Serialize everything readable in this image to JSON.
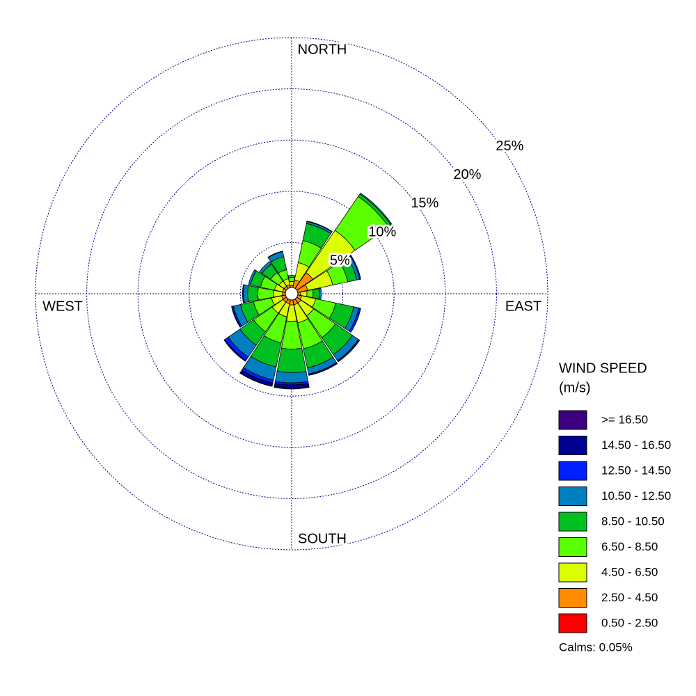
{
  "chart_data": {
    "type": "windrose",
    "compass_labels": [
      "NORTH",
      "EAST",
      "SOUTH",
      "WEST"
    ],
    "x": [
      0,
      22.5,
      45,
      67.5,
      90,
      112.5,
      135,
      157.5,
      180,
      202.5,
      225,
      247.5,
      270,
      292.5,
      315,
      337.5
    ],
    "rlim": [
      0,
      25
    ],
    "rticks": [
      {
        "value": 5,
        "label": "5%"
      },
      {
        "value": 10,
        "label": "10%"
      },
      {
        "value": 15,
        "label": "15%"
      },
      {
        "value": 20,
        "label": "20%"
      },
      {
        "value": 25,
        "label": "25%"
      }
    ],
    "legend_title": "WIND SPEED",
    "legend_unit": "(m/s)",
    "calms_text": "Calms: 0.05%",
    "series": [
      {
        "name": "0.50 - 2.50",
        "color": "#ff0000",
        "values": [
          0.3,
          0.4,
          0.5,
          0.4,
          0.3,
          0.3,
          0.3,
          0.3,
          0.3,
          0.3,
          0.3,
          0.3,
          0.3,
          0.3,
          0.3,
          0.3
        ]
      },
      {
        "name": "2.50 - 4.50",
        "color": "#ff8c00",
        "values": [
          0.5,
          1.0,
          2.0,
          1.2,
          0.6,
          0.7,
          0.8,
          0.8,
          0.8,
          0.7,
          0.7,
          0.7,
          0.6,
          0.6,
          0.6,
          0.6
        ]
      },
      {
        "name": "4.50 - 6.50",
        "color": "#dcff00",
        "values": [
          0.4,
          1.7,
          5.0,
          2.5,
          0.6,
          1.4,
          1.5,
          1.8,
          1.6,
          1.3,
          1.3,
          1.0,
          0.9,
          0.8,
          0.6,
          0.6
        ]
      },
      {
        "name": "6.50 - 8.50",
        "color": "#5aff00",
        "values": [
          0.4,
          2.2,
          4.0,
          1.5,
          0.6,
          2.0,
          2.6,
          2.6,
          2.7,
          2.6,
          2.2,
          1.8,
          1.5,
          1.4,
          1.0,
          0.9
        ]
      },
      {
        "name": "8.50 - 10.50",
        "color": "#00c020",
        "values": [
          0.2,
          1.7,
          0.3,
          0.9,
          0.6,
          1.8,
          2.0,
          1.9,
          2.3,
          2.4,
          1.6,
          1.3,
          1.0,
          1.0,
          1.0,
          1.3
        ]
      },
      {
        "name": "10.50 - 12.50",
        "color": "#0080c0",
        "values": [
          0,
          0.2,
          0.1,
          0.3,
          0.2,
          0.5,
          0.7,
          0.6,
          1.0,
          1.3,
          1.4,
          0.7,
          0.4,
          0.2,
          0.3,
          0.5
        ]
      },
      {
        "name": "12.50 - 14.50",
        "color": "#0020ff",
        "values": [
          0,
          0.05,
          0,
          0.1,
          0,
          0.2,
          0.1,
          0.1,
          0.2,
          0.3,
          0.4,
          0.15,
          0.1,
          0,
          0,
          0.05
        ]
      },
      {
        "name": "14.50 - 16.50",
        "color": "#000090",
        "values": [
          0,
          0,
          0,
          0,
          0,
          0,
          0.05,
          0.05,
          0.3,
          0.3,
          0.1,
          0.05,
          0,
          0,
          0,
          0
        ]
      },
      {
        "name": ">= 16.50",
        "color": "#3c0080",
        "values": [
          0,
          0,
          0,
          0,
          0,
          0,
          0,
          0,
          0.1,
          0.05,
          0,
          0,
          0,
          0,
          0,
          0
        ]
      }
    ]
  }
}
